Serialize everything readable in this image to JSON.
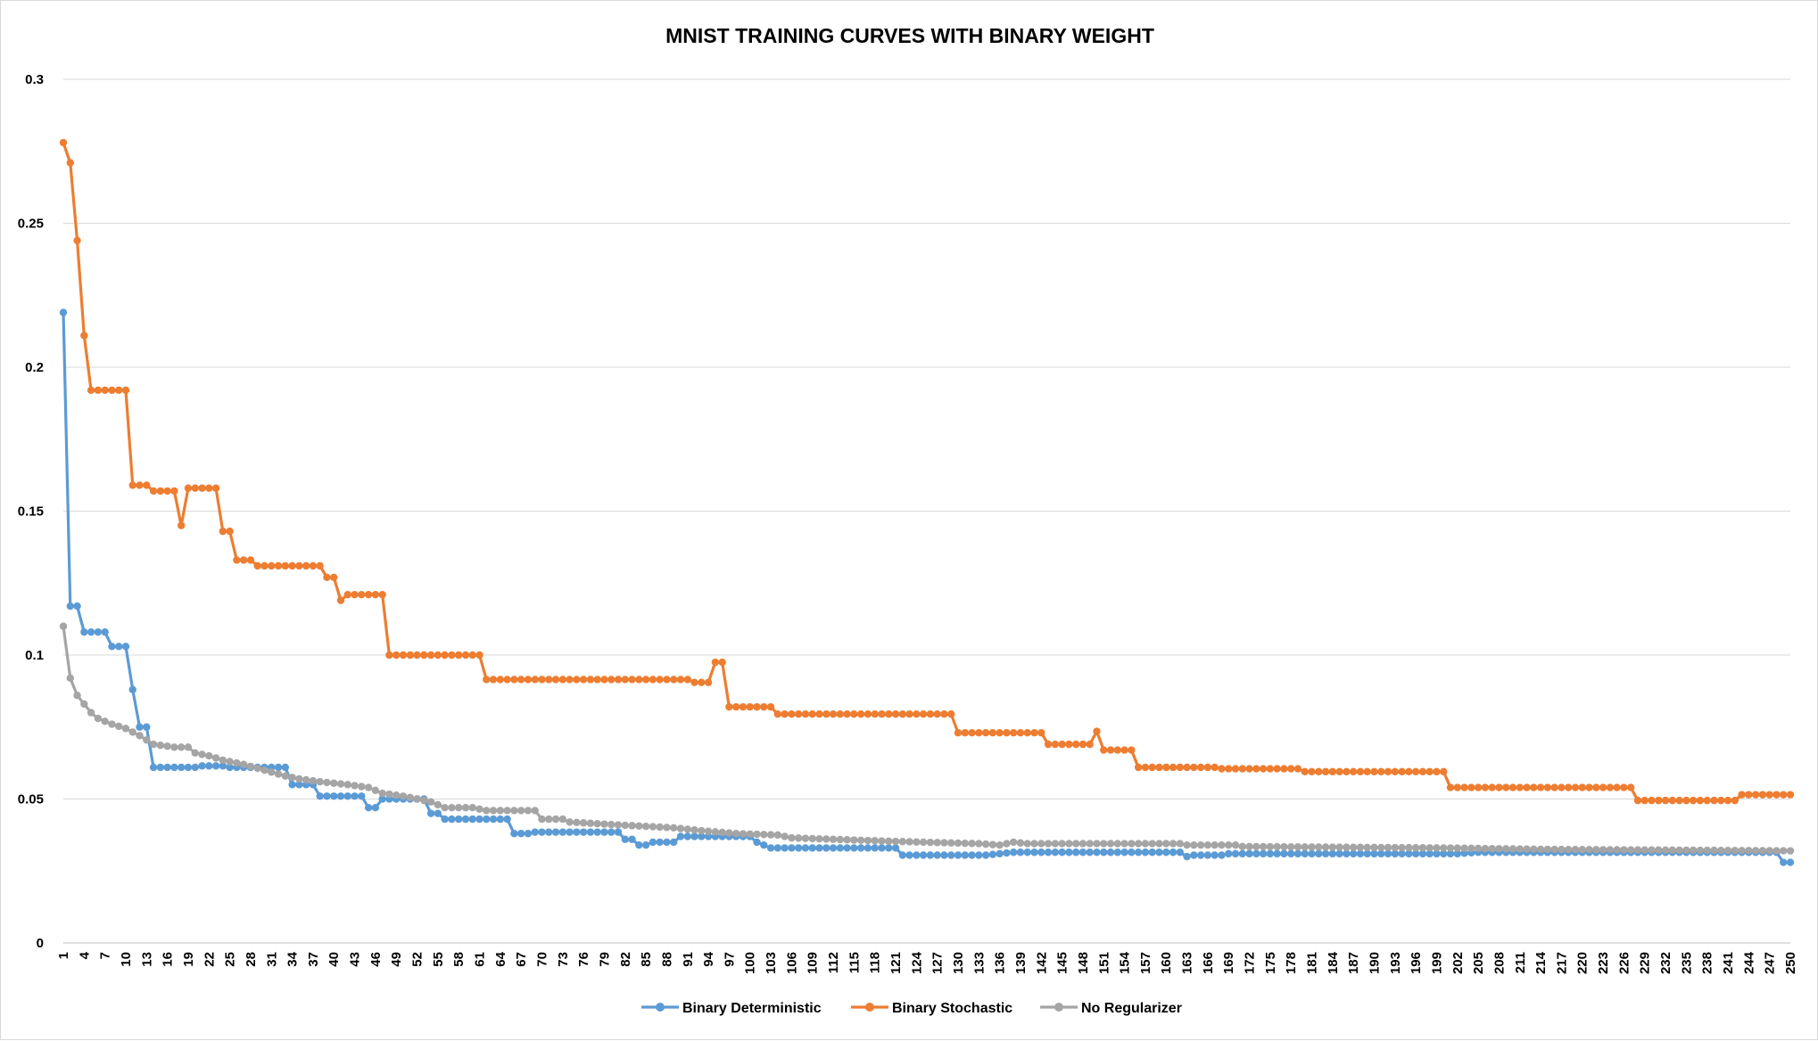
{
  "chart_data": {
    "type": "line",
    "title": "MNIST TRAINING CURVES WITH BINARY WEIGHT",
    "xlabel": "",
    "ylabel": "",
    "x_range": [
      1,
      250
    ],
    "ylim": [
      0,
      0.3
    ],
    "y_ticks": [
      0,
      0.05,
      0.1,
      0.15,
      0.2,
      0.25,
      0.3
    ],
    "y_tick_labels": [
      "0",
      "0.05",
      "0.1",
      "0.15",
      "0.2",
      "0.25",
      "0.3"
    ],
    "x_tick_start": 1,
    "x_tick_step": 3,
    "x_tick_last": 250,
    "grid": "horizontal",
    "legend_position": "bottom",
    "markers": "circle",
    "series": [
      {
        "name": "Binary Deterministic",
        "color": "#5b9bd5",
        "points": [
          [
            1,
            0.219
          ],
          [
            2,
            0.117
          ],
          [
            3,
            0.117
          ],
          [
            4,
            0.108
          ],
          [
            7,
            0.108
          ],
          [
            8,
            0.103
          ],
          [
            10,
            0.103
          ],
          [
            11,
            0.088
          ],
          [
            12,
            0.075
          ],
          [
            13,
            0.075
          ],
          [
            14,
            0.061
          ],
          [
            20,
            0.061
          ],
          [
            21,
            0.0615
          ],
          [
            24,
            0.0615
          ],
          [
            25,
            0.061
          ],
          [
            31,
            0.061
          ],
          [
            32,
            0.061
          ],
          [
            33,
            0.061
          ],
          [
            34,
            0.055
          ],
          [
            37,
            0.055
          ],
          [
            38,
            0.051
          ],
          [
            44,
            0.051
          ],
          [
            45,
            0.047
          ],
          [
            46,
            0.047
          ],
          [
            47,
            0.05
          ],
          [
            53,
            0.05
          ],
          [
            54,
            0.045
          ],
          [
            55,
            0.045
          ],
          [
            56,
            0.043
          ],
          [
            65,
            0.043
          ],
          [
            66,
            0.038
          ],
          [
            68,
            0.038
          ],
          [
            69,
            0.0385
          ],
          [
            81,
            0.0385
          ],
          [
            82,
            0.036
          ],
          [
            83,
            0.036
          ],
          [
            84,
            0.034
          ],
          [
            85,
            0.034
          ],
          [
            86,
            0.035
          ],
          [
            89,
            0.035
          ],
          [
            90,
            0.037
          ],
          [
            100,
            0.037
          ],
          [
            101,
            0.035
          ],
          [
            102,
            0.034
          ],
          [
            103,
            0.033
          ],
          [
            120,
            0.033
          ],
          [
            121,
            0.033
          ],
          [
            122,
            0.0305
          ],
          [
            134,
            0.0305
          ],
          [
            136,
            0.031
          ],
          [
            138,
            0.0315
          ],
          [
            162,
            0.0315
          ],
          [
            163,
            0.03
          ],
          [
            164,
            0.0305
          ],
          [
            168,
            0.0305
          ],
          [
            169,
            0.031
          ],
          [
            202,
            0.031
          ],
          [
            205,
            0.0315
          ],
          [
            248,
            0.0315
          ],
          [
            249,
            0.028
          ],
          [
            250,
            0.028
          ]
        ]
      },
      {
        "name": "Binary Stochastic",
        "color": "#ed7d31",
        "points": [
          [
            1,
            0.278
          ],
          [
            2,
            0.271
          ],
          [
            3,
            0.244
          ],
          [
            4,
            0.211
          ],
          [
            5,
            0.192
          ],
          [
            10,
            0.192
          ],
          [
            11,
            0.159
          ],
          [
            13,
            0.159
          ],
          [
            14,
            0.157
          ],
          [
            17,
            0.157
          ],
          [
            18,
            0.145
          ],
          [
            19,
            0.158
          ],
          [
            23,
            0.158
          ],
          [
            24,
            0.143
          ],
          [
            25,
            0.143
          ],
          [
            26,
            0.133
          ],
          [
            28,
            0.133
          ],
          [
            29,
            0.131
          ],
          [
            38,
            0.131
          ],
          [
            39,
            0.127
          ],
          [
            40,
            0.127
          ],
          [
            41,
            0.119
          ],
          [
            42,
            0.121
          ],
          [
            47,
            0.121
          ],
          [
            48,
            0.1
          ],
          [
            61,
            0.1
          ],
          [
            62,
            0.0915
          ],
          [
            91,
            0.0915
          ],
          [
            92,
            0.0905
          ],
          [
            94,
            0.0905
          ],
          [
            95,
            0.0975
          ],
          [
            96,
            0.0975
          ],
          [
            97,
            0.082
          ],
          [
            103,
            0.082
          ],
          [
            104,
            0.0795
          ],
          [
            129,
            0.0795
          ],
          [
            130,
            0.073
          ],
          [
            142,
            0.073
          ],
          [
            143,
            0.069
          ],
          [
            149,
            0.069
          ],
          [
            150,
            0.0735
          ],
          [
            151,
            0.067
          ],
          [
            155,
            0.067
          ],
          [
            156,
            0.061
          ],
          [
            167,
            0.061
          ],
          [
            168,
            0.0605
          ],
          [
            179,
            0.0605
          ],
          [
            180,
            0.0595
          ],
          [
            200,
            0.0595
          ],
          [
            201,
            0.054
          ],
          [
            227,
            0.054
          ],
          [
            228,
            0.0495
          ],
          [
            242,
            0.0495
          ],
          [
            243,
            0.0515
          ],
          [
            250,
            0.0515
          ]
        ]
      },
      {
        "name": "No Regularizer",
        "color": "#a5a5a5",
        "points": [
          [
            1,
            0.11
          ],
          [
            2,
            0.092
          ],
          [
            3,
            0.086
          ],
          [
            4,
            0.083
          ],
          [
            5,
            0.08
          ],
          [
            6,
            0.078
          ],
          [
            8,
            0.076
          ],
          [
            10,
            0.0745
          ],
          [
            12,
            0.072
          ],
          [
            14,
            0.069
          ],
          [
            17,
            0.068
          ],
          [
            19,
            0.068
          ],
          [
            20,
            0.066
          ],
          [
            22,
            0.065
          ],
          [
            24,
            0.0635
          ],
          [
            27,
            0.062
          ],
          [
            30,
            0.06
          ],
          [
            33,
            0.058
          ],
          [
            35,
            0.057
          ],
          [
            38,
            0.056
          ],
          [
            40,
            0.0555
          ],
          [
            42,
            0.055
          ],
          [
            45,
            0.054
          ],
          [
            47,
            0.052
          ],
          [
            50,
            0.051
          ],
          [
            52,
            0.05
          ],
          [
            54,
            0.049
          ],
          [
            56,
            0.047
          ],
          [
            60,
            0.047
          ],
          [
            62,
            0.046
          ],
          [
            69,
            0.046
          ],
          [
            70,
            0.043
          ],
          [
            73,
            0.043
          ],
          [
            74,
            0.042
          ],
          [
            81,
            0.041
          ],
          [
            85,
            0.0405
          ],
          [
            89,
            0.04
          ],
          [
            93,
            0.039
          ],
          [
            98,
            0.038
          ],
          [
            104,
            0.0375
          ],
          [
            106,
            0.0365
          ],
          [
            112,
            0.036
          ],
          [
            118,
            0.0355
          ],
          [
            125,
            0.035
          ],
          [
            133,
            0.0345
          ],
          [
            136,
            0.034
          ],
          [
            138,
            0.035
          ],
          [
            140,
            0.0345
          ],
          [
            162,
            0.0345
          ],
          [
            163,
            0.034
          ],
          [
            170,
            0.034
          ],
          [
            171,
            0.0335
          ],
          [
            200,
            0.033
          ],
          [
            215,
            0.0325
          ],
          [
            250,
            0.032
          ]
        ]
      }
    ]
  }
}
